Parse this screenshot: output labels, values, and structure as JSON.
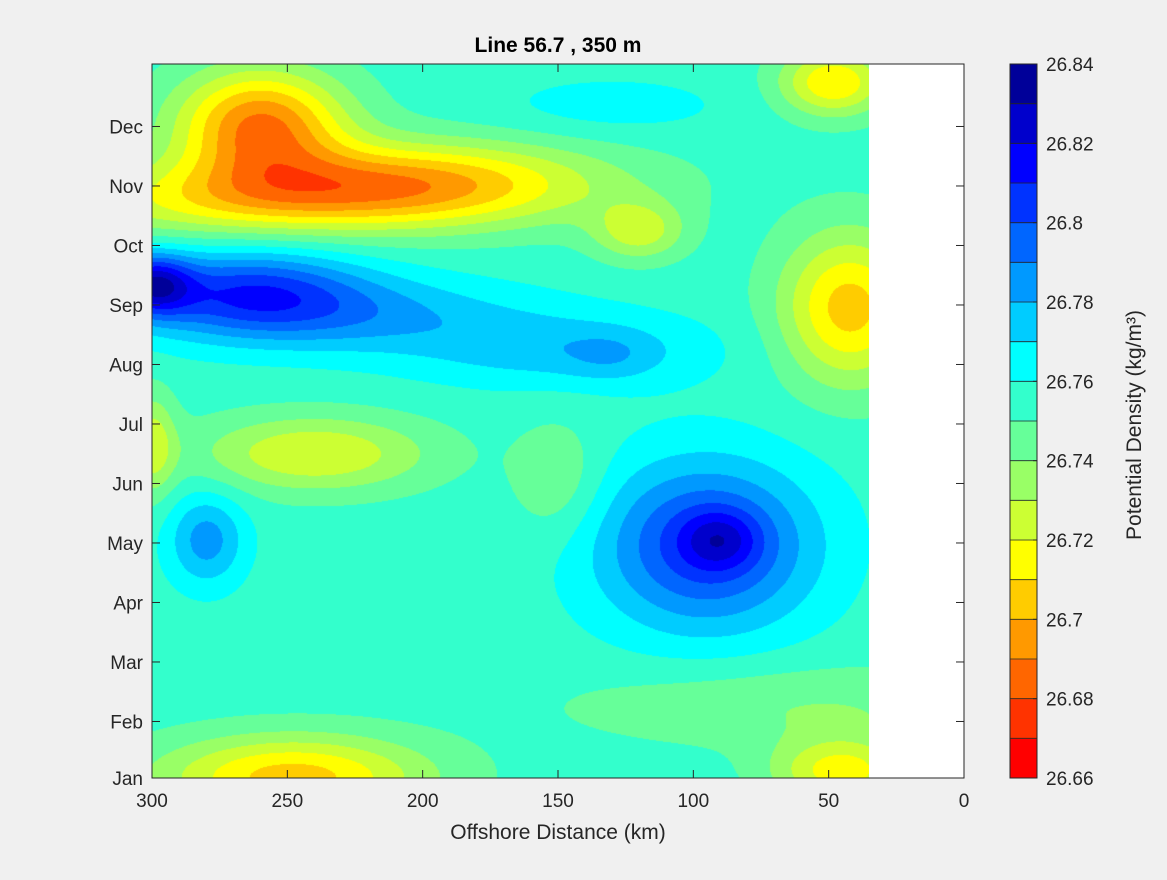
{
  "chart_data": {
    "type": "heatmap",
    "subtype": "filled-contour",
    "title": "Line 56.7 , 350 m",
    "xlabel": "Offshore Distance (km)",
    "ylabel": "",
    "x_reversed": true,
    "xlim": [
      0,
      300
    ],
    "x_data_extent": [
      35,
      300
    ],
    "ylim": [
      0,
      12
    ],
    "x_ticks": [
      {
        "value": 300,
        "label": "300"
      },
      {
        "value": 250,
        "label": "250"
      },
      {
        "value": 200,
        "label": "200"
      },
      {
        "value": 150,
        "label": "150"
      },
      {
        "value": 100,
        "label": "100"
      },
      {
        "value": 50,
        "label": "50"
      },
      {
        "value": 0,
        "label": "0"
      }
    ],
    "y_ticks": [
      {
        "value": 0,
        "label": "Jan"
      },
      {
        "value": 0.95,
        "label": "Feb"
      },
      {
        "value": 1.95,
        "label": "Mar"
      },
      {
        "value": 2.95,
        "label": "Apr"
      },
      {
        "value": 3.95,
        "label": "May"
      },
      {
        "value": 4.95,
        "label": "Jun"
      },
      {
        "value": 5.95,
        "label": "Jul"
      },
      {
        "value": 6.95,
        "label": "Aug"
      },
      {
        "value": 7.95,
        "label": "Sep"
      },
      {
        "value": 8.95,
        "label": "Oct"
      },
      {
        "value": 9.95,
        "label": "Nov"
      },
      {
        "value": 10.95,
        "label": "Dec"
      }
    ],
    "colorbar": {
      "label": "Potential Density (kg/m³)",
      "min": 26.66,
      "max": 26.84,
      "levels": [
        26.66,
        26.67,
        26.68,
        26.69,
        26.7,
        26.71,
        26.72,
        26.73,
        26.74,
        26.75,
        26.76,
        26.77,
        26.78,
        26.79,
        26.8,
        26.81,
        26.82,
        26.83,
        26.84
      ],
      "colors": [
        "#ff0000",
        "#ff3300",
        "#ff6600",
        "#ff9900",
        "#ffcc00",
        "#ffff00",
        "#ccff33",
        "#99ff66",
        "#66ff99",
        "#33ffcc",
        "#00ffff",
        "#00ccff",
        "#0099ff",
        "#0066ff",
        "#0033ff",
        "#0000ff",
        "#0000cc",
        "#000099"
      ],
      "tick_labels": [
        "26.84",
        "26.82",
        "26.8",
        "26.78",
        "26.76",
        "26.74",
        "26.72",
        "26.7",
        "26.68",
        "26.66"
      ],
      "tick_values": [
        26.84,
        26.82,
        26.8,
        26.78,
        26.76,
        26.74,
        26.72,
        26.7,
        26.68,
        26.66
      ]
    },
    "background_value": 26.755,
    "features": [
      {
        "x": 300,
        "y": 8.3,
        "sx": 10,
        "sy": 0.35,
        "amp": 0.055
      },
      {
        "x": 265,
        "y": 8.2,
        "sx": 30,
        "sy": 0.5,
        "amp": 0.045
      },
      {
        "x": 230,
        "y": 7.8,
        "sx": 45,
        "sy": 0.45,
        "amp": 0.025
      },
      {
        "x": 150,
        "y": 7.2,
        "sx": 40,
        "sy": 0.45,
        "amp": 0.02
      },
      {
        "x": 130,
        "y": 7.1,
        "sx": 12,
        "sy": 0.3,
        "amp": 0.01
      },
      {
        "x": 95,
        "y": 3.9,
        "sx": 28,
        "sy": 1.0,
        "amp": 0.052
      },
      {
        "x": 90,
        "y": 4.0,
        "sx": 10,
        "sy": 0.35,
        "amp": 0.025
      },
      {
        "x": 280,
        "y": 4.0,
        "sx": 10,
        "sy": 0.55,
        "amp": 0.03
      },
      {
        "x": 260,
        "y": 11.0,
        "sx": 22,
        "sy": 0.65,
        "amp": -0.065
      },
      {
        "x": 205,
        "y": 10.0,
        "sx": 50,
        "sy": 0.5,
        "amp": -0.055
      },
      {
        "x": 270,
        "y": 9.7,
        "sx": 55,
        "sy": 0.45,
        "amp": -0.03
      },
      {
        "x": 42,
        "y": 7.9,
        "sx": 18,
        "sy": 0.9,
        "amp": -0.05
      },
      {
        "x": 48,
        "y": 11.7,
        "sx": 14,
        "sy": 0.4,
        "amp": -0.045
      },
      {
        "x": 248,
        "y": 0.0,
        "sx": 35,
        "sy": 0.5,
        "amp": -0.05
      },
      {
        "x": 45,
        "y": 0.1,
        "sx": 18,
        "sy": 0.4,
        "amp": -0.04
      },
      {
        "x": 240,
        "y": 5.45,
        "sx": 30,
        "sy": 0.45,
        "amp": -0.035
      },
      {
        "x": 300,
        "y": 5.6,
        "sx": 6,
        "sy": 0.6,
        "amp": -0.03
      },
      {
        "x": 120,
        "y": 9.2,
        "sx": 12,
        "sy": 0.35,
        "amp": -0.03
      },
      {
        "x": 60,
        "y": 1.2,
        "sx": 60,
        "sy": 0.5,
        "amp": -0.015
      },
      {
        "x": 150,
        "y": 5.0,
        "sx": 12,
        "sy": 0.7,
        "amp": -0.015
      },
      {
        "x": 130,
        "y": 11.3,
        "sx": 30,
        "sy": 0.35,
        "amp": 0.01
      }
    ]
  }
}
